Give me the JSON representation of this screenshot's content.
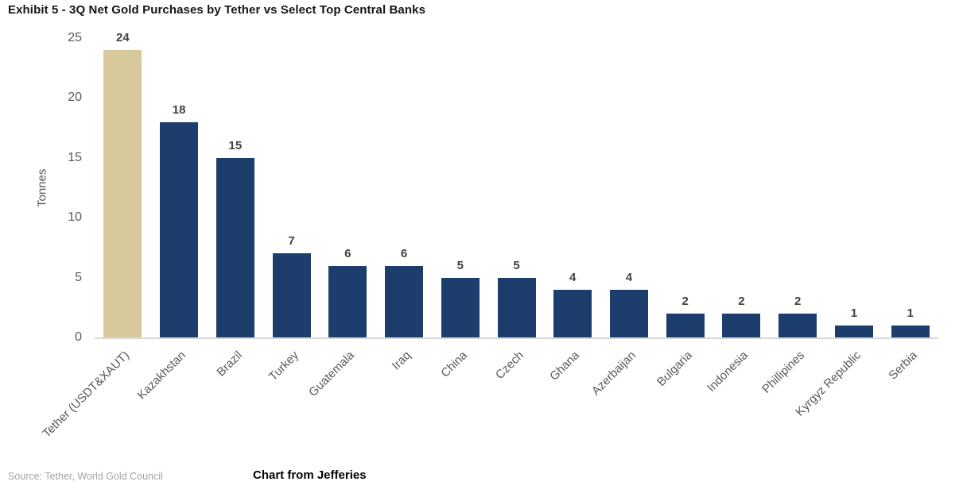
{
  "title": "Exhibit 5 - 3Q Net Gold Purchases by Tether vs Select Top Central Banks",
  "footer": {
    "source": "Source: Tether, World Gold Council",
    "credit": "Chart from Jefferies"
  },
  "colors": {
    "highlight_bar": "#d8c99c",
    "default_bar": "#1d3d6c",
    "axis_line": "#d9d9d9",
    "tick_label": "#595959",
    "data_label": "#404040",
    "source_text": "#a3a3a3",
    "title_text": "#15151a"
  },
  "chart_data": {
    "type": "bar",
    "title": "Exhibit 5 - 3Q Net Gold Purchases by Tether vs Select Top Central Banks",
    "xlabel": "",
    "ylabel": "Tonnes",
    "ylim": [
      0,
      25
    ],
    "ytick_step": 5,
    "yticks": [
      0,
      5,
      10,
      15,
      20,
      25
    ],
    "grid": false,
    "legend": "none",
    "data_labels": true,
    "highlight_index": 0,
    "categories": [
      "Tether (USDT&XAUT)",
      "Kazakhstan",
      "Brazil",
      "Turkey",
      "Guatemala",
      "Iraq",
      "China",
      "Czech",
      "Ghana",
      "Azerbaijan",
      "Bulgaria",
      "Indonesia",
      "Phillipines",
      "Kyrgyz Republic",
      "Serbia"
    ],
    "values": [
      24,
      18,
      15,
      7,
      6,
      6,
      5,
      5,
      4,
      4,
      2,
      2,
      2,
      1,
      1
    ]
  }
}
